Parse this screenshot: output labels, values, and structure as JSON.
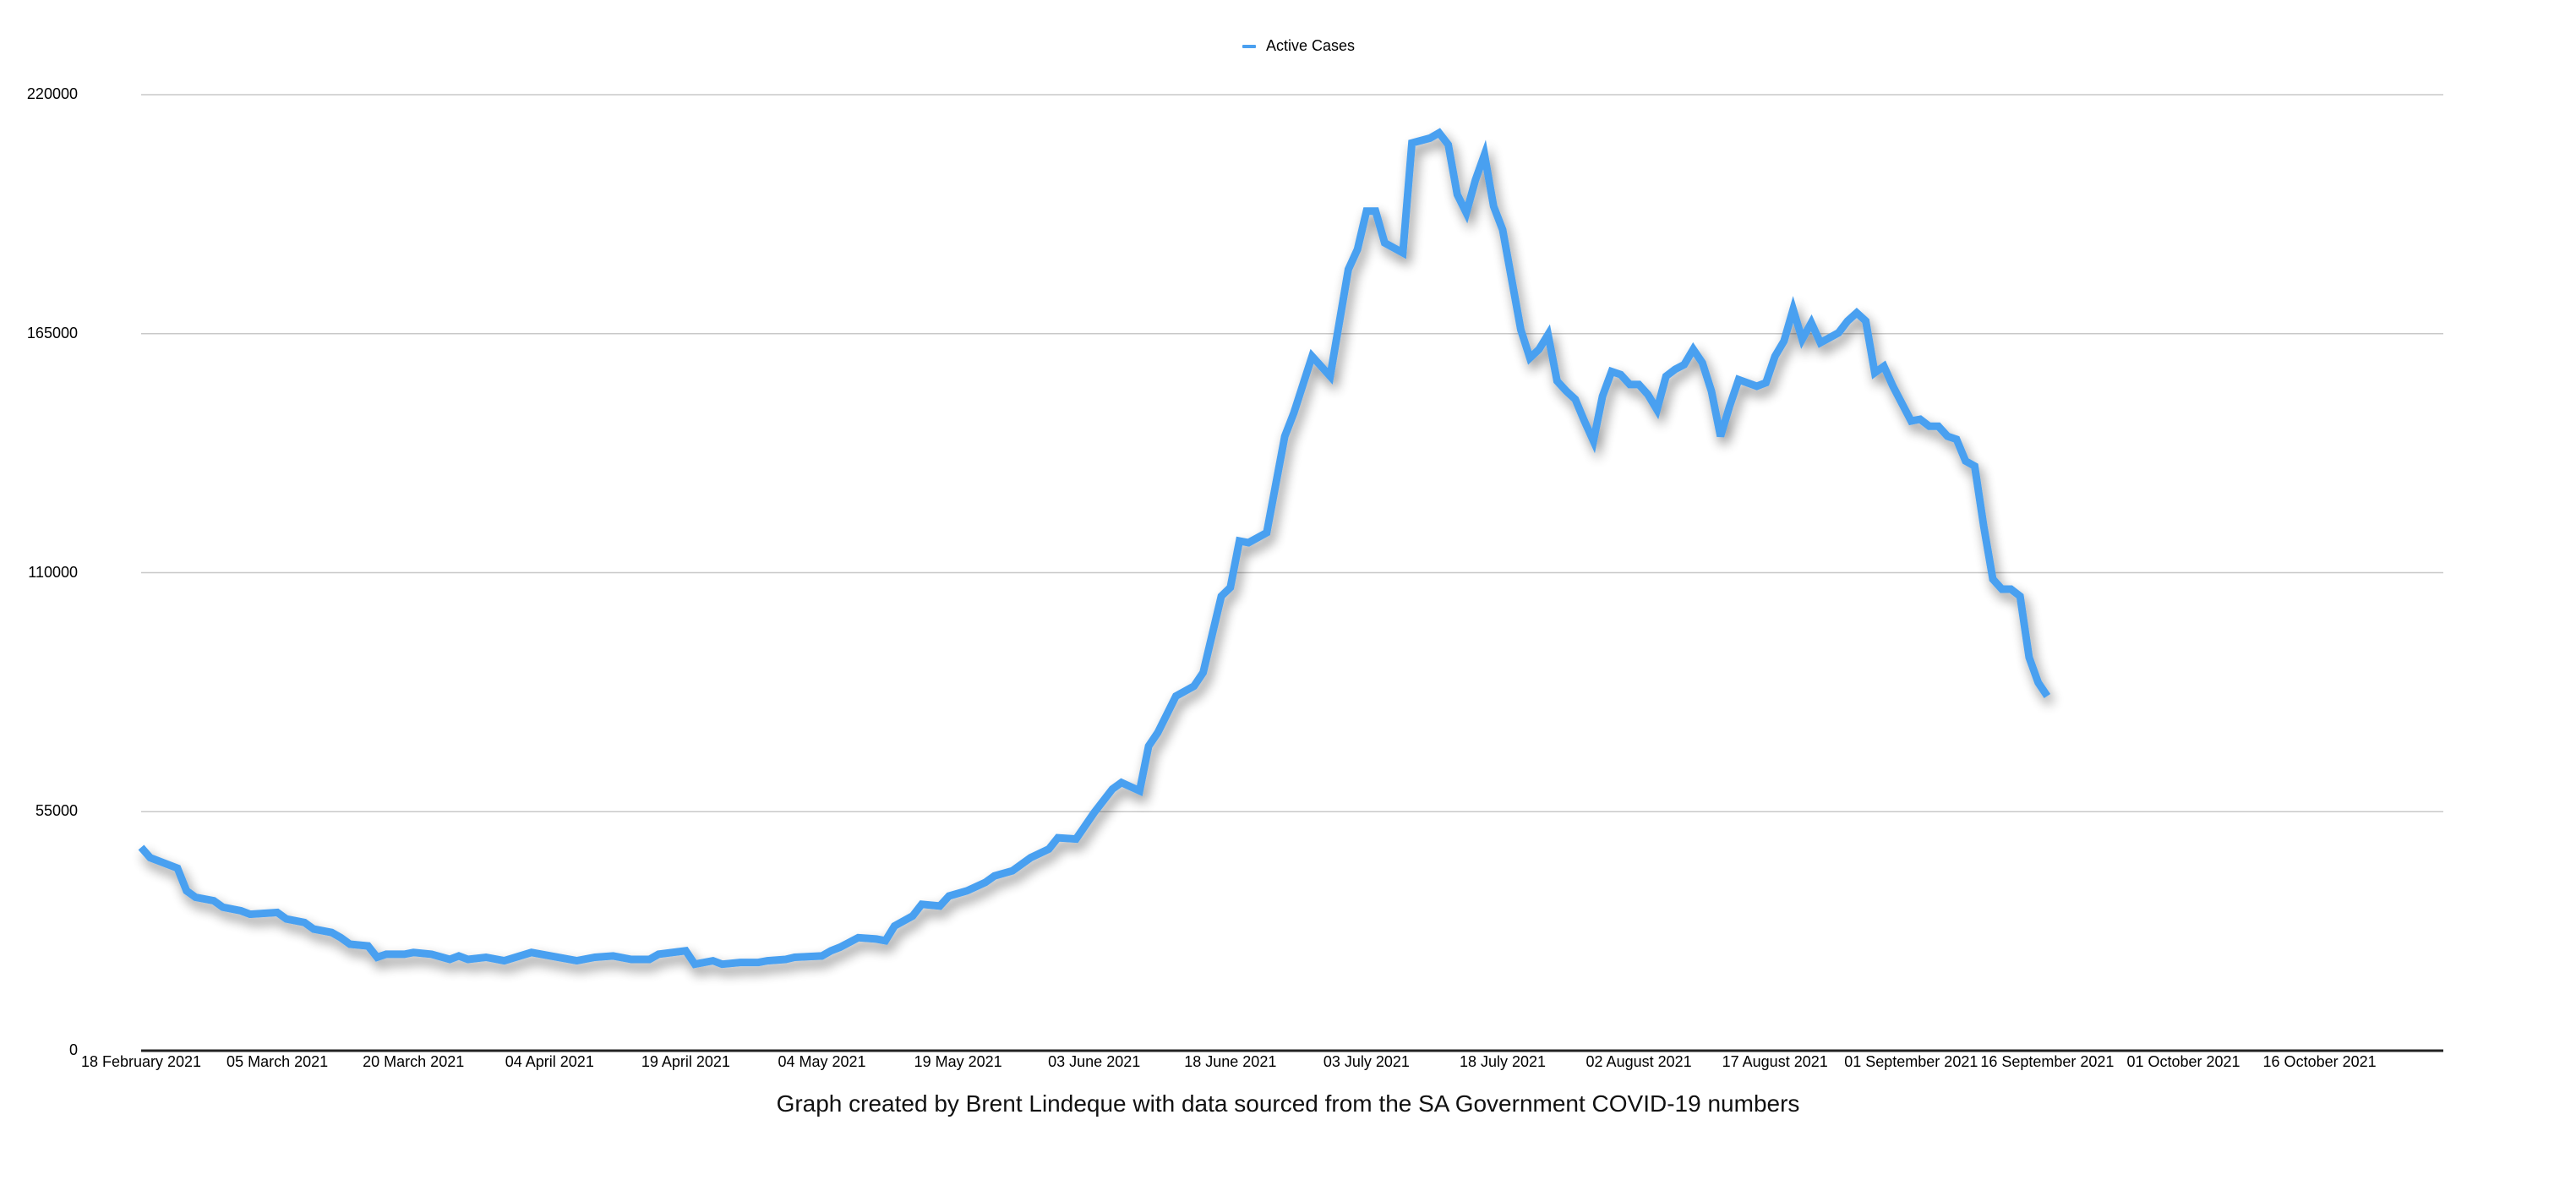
{
  "chart_data": {
    "type": "line",
    "title": "",
    "xlabel": "",
    "ylabel": "",
    "legend": {
      "position": "top-center",
      "entries": [
        "Active Cases"
      ]
    },
    "grid": {
      "horizontal": true,
      "vertical": false
    },
    "ylim": [
      0,
      220000
    ],
    "yticks": [
      0,
      55000,
      110000,
      165000,
      220000
    ],
    "ytick_labels": [
      "0",
      "55000",
      "110000",
      "165000",
      "220000"
    ],
    "x_start": "18 February 2021",
    "x_end_day": 252,
    "xtick_days": [
      0,
      15,
      30,
      45,
      60,
      75,
      90,
      105,
      120,
      135,
      150,
      165,
      180,
      195,
      210,
      225,
      240
    ],
    "xtick_labels": [
      "18 February 2021",
      "05 March 2021",
      "20 March 2021",
      "04 April 2021",
      "19 April 2021",
      "04 May 2021",
      "19 May 2021",
      "03 June 2021",
      "18 June 2021",
      "03 July 2021",
      "18 July 2021",
      "02 August 2021",
      "17 August 2021",
      "01 September 2021",
      "16 September 2021",
      "01 October 2021",
      "16 October 2021"
    ],
    "series": [
      {
        "name": "Active Cases",
        "color": "#4aa0f0",
        "x_days": [
          0,
          1,
          4,
          5,
          6,
          8,
          9,
          11,
          12,
          15,
          16,
          18,
          19,
          21,
          22,
          23,
          25,
          26,
          27,
          29,
          30,
          32,
          34,
          35,
          36,
          38,
          40,
          43,
          48,
          50,
          52,
          54,
          56,
          57,
          60,
          61,
          63,
          64,
          66,
          68,
          69,
          71,
          72,
          75,
          76,
          77,
          79,
          81,
          82,
          83,
          85,
          86,
          88,
          89,
          91,
          93,
          94,
          96,
          98,
          100,
          101,
          103,
          105,
          107,
          108,
          110,
          111,
          112,
          114,
          116,
          117,
          119,
          120,
          121,
          122,
          124,
          126,
          127,
          129,
          131,
          133,
          134,
          135,
          136,
          137,
          139,
          140,
          142,
          143,
          144,
          145,
          146,
          147,
          148,
          149,
          150,
          152,
          153,
          154,
          155,
          156,
          157,
          158,
          159,
          160,
          161,
          162,
          163,
          164,
          165,
          166,
          167,
          168,
          169,
          170,
          171,
          172,
          173,
          174,
          175,
          176,
          178,
          179,
          180,
          181,
          182,
          183,
          184,
          185,
          187,
          188,
          189,
          190,
          191,
          192,
          193,
          195,
          196,
          197,
          198,
          199,
          200,
          201,
          202,
          203,
          204,
          205,
          206,
          207,
          208,
          209,
          210
        ],
        "values": [
          46800,
          44400,
          42000,
          36800,
          35300,
          34500,
          33000,
          32200,
          31400,
          31800,
          30300,
          29500,
          28000,
          27200,
          26000,
          24500,
          24100,
          21500,
          22200,
          22200,
          22600,
          22200,
          21000,
          21800,
          21000,
          21500,
          20700,
          22600,
          20700,
          21500,
          21800,
          21000,
          21000,
          22200,
          23000,
          19900,
          20700,
          19900,
          20300,
          20300,
          20700,
          21000,
          21500,
          21800,
          23000,
          23800,
          26000,
          25700,
          25300,
          28700,
          31000,
          33700,
          33300,
          35600,
          36800,
          38700,
          40200,
          41400,
          44400,
          46400,
          49000,
          48700,
          54800,
          60200,
          61700,
          59800,
          70100,
          73200,
          81600,
          83900,
          87000,
          104600,
          106600,
          117300,
          116900,
          119200,
          141400,
          146800,
          159800,
          155200,
          179800,
          184400,
          193200,
          193200,
          185900,
          183600,
          208900,
          210000,
          211200,
          208500,
          197000,
          192800,
          200400,
          206200,
          194300,
          188900,
          165900,
          159400,
          161400,
          164800,
          154100,
          151800,
          149900,
          144900,
          140300,
          150600,
          156300,
          155600,
          153300,
          153300,
          151000,
          147500,
          155200,
          156800,
          157900,
          161400,
          158300,
          151800,
          141400,
          148300,
          154400,
          152900,
          153700,
          159800,
          163300,
          170600,
          163700,
          167500,
          162900,
          165200,
          167900,
          169800,
          167900,
          156000,
          157500,
          152900,
          144900,
          145300,
          143700,
          143700,
          141400,
          140700,
          135700,
          134500,
          120700,
          108500,
          106200,
          106200,
          104600,
          90500,
          84700,
          81600
        ]
      }
    ],
    "caption": "Graph created by Brent Lindeque with data sourced from the SA Government COVID-19 numbers"
  },
  "legend": {
    "label": "Active Cases",
    "color": "#4aa0f0"
  },
  "caption": "Graph created by Brent Lindeque with data sourced from the SA Government COVID-19 numbers"
}
